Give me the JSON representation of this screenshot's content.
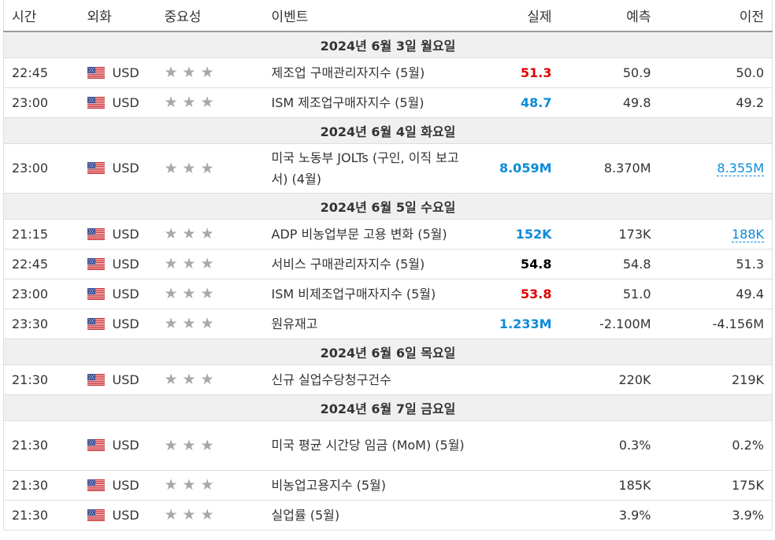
{
  "header": {
    "time": "시간",
    "currency": "외화",
    "importance": "중요성",
    "event": "이벤트",
    "actual": "실제",
    "forecast": "예측",
    "previous": "이전"
  },
  "days": [
    {
      "date": "2024년 6월 3일 월요일",
      "events": [
        {
          "time": "22:45",
          "currency": "USD",
          "name": "제조업 구매관리자지수 (5월)",
          "actual": "51.3",
          "actual_color": "#e00000",
          "forecast": "50.9",
          "previous": "50.0",
          "tall": false
        },
        {
          "time": "23:00",
          "currency": "USD",
          "name": "ISM 제조업구매자지수 (5월)",
          "actual": "48.7",
          "actual_color": "#0c8bd8",
          "forecast": "49.8",
          "previous": "49.2",
          "tall": false
        }
      ]
    },
    {
      "date": "2024년 6월 4일 화요일",
      "events": [
        {
          "time": "23:00",
          "currency": "USD",
          "name": "미국 노동부 JOLTs (구인, 이직 보고서) (4월)",
          "actual": "8.059M",
          "actual_color": "#0c8bd8",
          "forecast": "8.370M",
          "previous": "8.355M",
          "previous_link": true,
          "tall": true
        }
      ]
    },
    {
      "date": "2024년 6월 5일 수요일",
      "events": [
        {
          "time": "21:15",
          "currency": "USD",
          "name": "ADP 비농업부문 고용 변화 (5월)",
          "actual": "152K",
          "actual_color": "#0c8bd8",
          "forecast": "173K",
          "previous": "188K",
          "previous_link": true,
          "tall": false
        },
        {
          "time": "22:45",
          "currency": "USD",
          "name": "서비스 구매관리자지수 (5월)",
          "actual": "54.8",
          "actual_color": "#000000",
          "forecast": "54.8",
          "previous": "51.3",
          "tall": false
        },
        {
          "time": "23:00",
          "currency": "USD",
          "name": "ISM 비제조업구매자지수 (5월)",
          "actual": "53.8",
          "actual_color": "#e00000",
          "forecast": "51.0",
          "previous": "49.4",
          "tall": false
        },
        {
          "time": "23:30",
          "currency": "USD",
          "name": "원유재고",
          "actual": "1.233M",
          "actual_color": "#0c8bd8",
          "forecast": "-2.100M",
          "previous": "-4.156M",
          "tall": false
        }
      ]
    },
    {
      "date": "2024년 6월 6일 목요일",
      "events": [
        {
          "time": "21:30",
          "currency": "USD",
          "name": "신규 실업수당청구건수",
          "actual": "",
          "actual_color": "#000000",
          "forecast": "220K",
          "previous": "219K",
          "tall": false
        }
      ]
    },
    {
      "date": "2024년 6월 7일 금요일",
      "events": [
        {
          "time": "21:30",
          "currency": "USD",
          "name": "미국 평균 시간당 임금 (MoM) (5월)",
          "actual": "",
          "actual_color": "#000000",
          "forecast": "0.3%",
          "previous": "0.2%",
          "tall": true
        },
        {
          "time": "21:30",
          "currency": "USD",
          "name": "비농업고용지수 (5월)",
          "actual": "",
          "actual_color": "#000000",
          "forecast": "185K",
          "previous": "175K",
          "tall": false
        },
        {
          "time": "21:30",
          "currency": "USD",
          "name": "실업률 (5월)",
          "actual": "",
          "actual_color": "#000000",
          "forecast": "3.9%",
          "previous": "3.9%",
          "tall": false
        }
      ]
    }
  ],
  "icons": {
    "flag": "us-flag-icon",
    "star": "star-icon",
    "star_count": 3
  }
}
